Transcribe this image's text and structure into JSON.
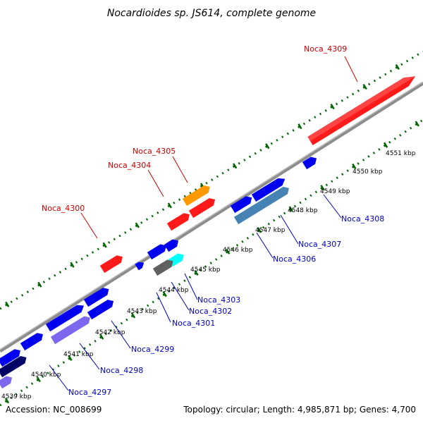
{
  "title": "Nocardioides sp. JS614, complete genome",
  "footer": {
    "accession": "Accession: NC_008699",
    "summary": "Topology: circular; Length: 4,985,871 bp; Genes: 4,700"
  },
  "ruler": {
    "ticks": [
      "4539 kbp",
      "4540 kbp",
      "4541 kbp",
      "4542 kbp",
      "4543 kbp",
      "4544 kbp",
      "4545 kbp",
      "4546 kbp",
      "4547 kbp",
      "4548 kbp",
      "4549 kbp",
      "4550 kbp",
      "4551 kbp"
    ]
  },
  "labels": {
    "top": [
      "Noca_4300",
      "Noca_4304",
      "Noca_4305",
      "Noca_4309"
    ],
    "bottom": [
      "Noca_4297",
      "Noca_4298",
      "Noca_4299",
      "Noca_4301",
      "Noca_4302",
      "Noca_4303",
      "Noca_4306",
      "Noca_4307",
      "Noca_4308"
    ]
  },
  "colors": {
    "top_label": "#cc0000",
    "bottom_label": "#0000cc",
    "red_gene": "#ff1a1a",
    "orange_gene": "#ff9900",
    "blue_gene": "#0000ee",
    "lavender_gene": "#7b68ee",
    "steel_gene": "#4682b4",
    "cyan_gene": "#00ffff",
    "gray_gene": "#606060",
    "navy_gene": "#000066",
    "backbone": "#8c8c8c",
    "tick_green": "#006400"
  }
}
